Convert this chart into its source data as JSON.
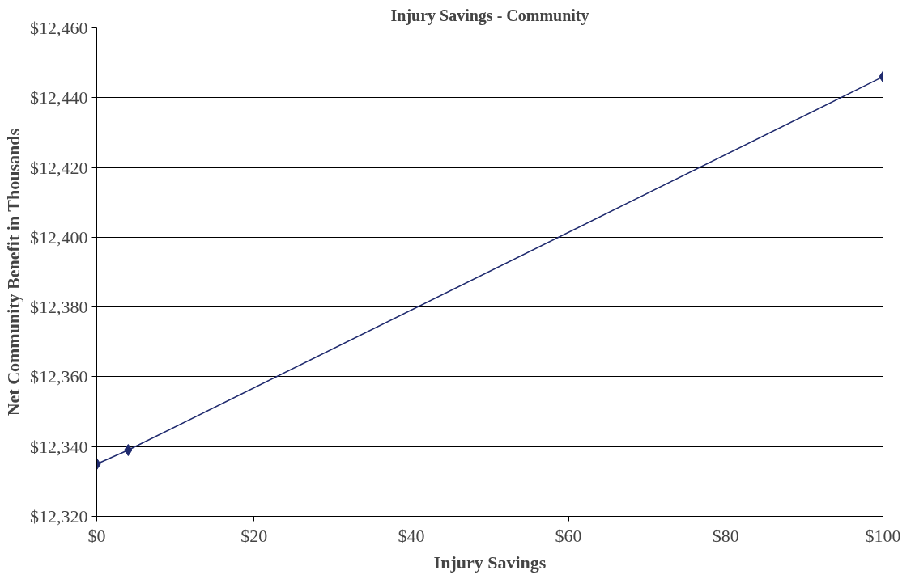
{
  "chart_data": {
    "type": "line",
    "title": "Injury Savings - Community",
    "xlabel": "Injury Savings",
    "ylabel": "Net Community Benefit in Thousands",
    "x": [
      0,
      4,
      100
    ],
    "series": [
      {
        "color": "#1f2a6e",
        "values": [
          12335,
          12339,
          12446
        ]
      }
    ],
    "xlim": [
      0,
      100
    ],
    "xticks": [
      {
        "value": 0,
        "label": "$0"
      },
      {
        "value": 20,
        "label": "$20"
      },
      {
        "value": 40,
        "label": "$40"
      },
      {
        "value": 60,
        "label": "$60"
      },
      {
        "value": 80,
        "label": "$80"
      },
      {
        "value": 100,
        "label": "$100"
      }
    ],
    "ylim": [
      12320,
      12460
    ],
    "yticks": [
      {
        "value": 12320,
        "label": "$12,320"
      },
      {
        "value": 12340,
        "label": "$12,340"
      },
      {
        "value": 12360,
        "label": "$12,360"
      },
      {
        "value": 12380,
        "label": "$12,380"
      },
      {
        "value": 12400,
        "label": "$12,400"
      },
      {
        "value": 12420,
        "label": "$12,420"
      },
      {
        "value": 12440,
        "label": "$12,440"
      },
      {
        "value": 12460,
        "label": "$12,460"
      }
    ],
    "grid": "y",
    "marker": "diamond",
    "line_style": "solid"
  }
}
